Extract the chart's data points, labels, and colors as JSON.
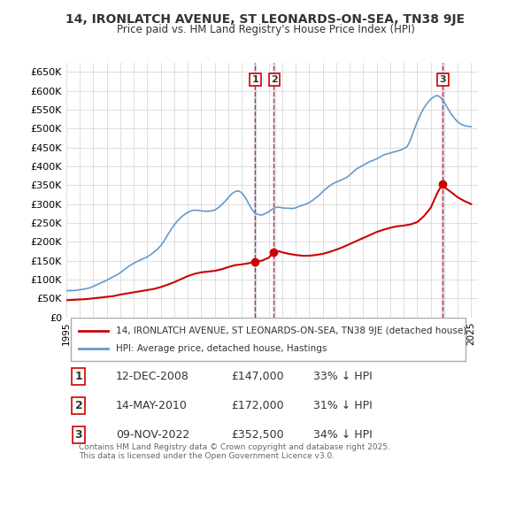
{
  "title": "14, IRONLATCH AVENUE, ST LEONARDS-ON-SEA, TN38 9JE",
  "subtitle": "Price paid vs. HM Land Registry's House Price Index (HPI)",
  "ylabel": "",
  "xlabel": "",
  "background_color": "#ffffff",
  "plot_bg_color": "#ffffff",
  "grid_color": "#dddddd",
  "hpi_color": "#6699cc",
  "price_color": "#cc0000",
  "ylim": [
    0,
    675000
  ],
  "yticks": [
    0,
    50000,
    100000,
    150000,
    200000,
    250000,
    300000,
    350000,
    400000,
    450000,
    500000,
    550000,
    600000,
    650000
  ],
  "ytick_labels": [
    "£0",
    "£50K",
    "£100K",
    "£150K",
    "£200K",
    "£250K",
    "£300K",
    "£350K",
    "£400K",
    "£450K",
    "£500K",
    "£550K",
    "£600K",
    "£650K"
  ],
  "xlim_start": 1995.0,
  "xlim_end": 2025.5,
  "xtick_years": [
    1995,
    1996,
    1997,
    1998,
    1999,
    2000,
    2001,
    2002,
    2003,
    2004,
    2005,
    2006,
    2007,
    2008,
    2009,
    2010,
    2011,
    2012,
    2013,
    2014,
    2015,
    2016,
    2017,
    2018,
    2019,
    2020,
    2021,
    2022,
    2023,
    2024,
    2025
  ],
  "transactions": [
    {
      "num": 1,
      "date": "12-DEC-2008",
      "price": 147000,
      "pct": "33%",
      "dir": "↓",
      "x": 2008.95
    },
    {
      "num": 2,
      "date": "14-MAY-2010",
      "price": 172000,
      "pct": "31%",
      "dir": "↓",
      "x": 2010.37
    },
    {
      "num": 3,
      "date": "09-NOV-2022",
      "price": 352500,
      "pct": "34%",
      "dir": "↓",
      "x": 2022.86
    }
  ],
  "legend_line1": "14, IRONLATCH AVENUE, ST LEONARDS-ON-SEA, TN38 9JE (detached house)",
  "legend_line2": "HPI: Average price, detached house, Hastings",
  "footnote": "Contains HM Land Registry data © Crown copyright and database right 2025.\nThis data is licensed under the Open Government Licence v3.0.",
  "hpi_data_x": [
    1995.0,
    1995.25,
    1995.5,
    1995.75,
    1996.0,
    1996.25,
    1996.5,
    1996.75,
    1997.0,
    1997.25,
    1997.5,
    1997.75,
    1998.0,
    1998.25,
    1998.5,
    1998.75,
    1999.0,
    1999.25,
    1999.5,
    1999.75,
    2000.0,
    2000.25,
    2000.5,
    2000.75,
    2001.0,
    2001.25,
    2001.5,
    2001.75,
    2002.0,
    2002.25,
    2002.5,
    2002.75,
    2003.0,
    2003.25,
    2003.5,
    2003.75,
    2004.0,
    2004.25,
    2004.5,
    2004.75,
    2005.0,
    2005.25,
    2005.5,
    2005.75,
    2006.0,
    2006.25,
    2006.5,
    2006.75,
    2007.0,
    2007.25,
    2007.5,
    2007.75,
    2008.0,
    2008.25,
    2008.5,
    2008.75,
    2009.0,
    2009.25,
    2009.5,
    2009.75,
    2010.0,
    2010.25,
    2010.5,
    2010.75,
    2011.0,
    2011.25,
    2011.5,
    2011.75,
    2012.0,
    2012.25,
    2012.5,
    2012.75,
    2013.0,
    2013.25,
    2013.5,
    2013.75,
    2014.0,
    2014.25,
    2014.5,
    2014.75,
    2015.0,
    2015.25,
    2015.5,
    2015.75,
    2016.0,
    2016.25,
    2016.5,
    2016.75,
    2017.0,
    2017.25,
    2017.5,
    2017.75,
    2018.0,
    2018.25,
    2018.5,
    2018.75,
    2019.0,
    2019.25,
    2019.5,
    2019.75,
    2020.0,
    2020.25,
    2020.5,
    2020.75,
    2021.0,
    2021.25,
    2021.5,
    2021.75,
    2022.0,
    2022.25,
    2022.5,
    2022.75,
    2023.0,
    2023.25,
    2023.5,
    2023.75,
    2024.0,
    2024.25,
    2024.5,
    2024.75,
    2025.0
  ],
  "hpi_data_y": [
    70000,
    71000,
    70500,
    71500,
    73000,
    74000,
    76000,
    78000,
    82000,
    86000,
    90000,
    94000,
    98000,
    103000,
    108000,
    112000,
    118000,
    125000,
    132000,
    138000,
    143000,
    148000,
    152000,
    156000,
    160000,
    166000,
    173000,
    180000,
    190000,
    203000,
    218000,
    232000,
    245000,
    256000,
    265000,
    272000,
    278000,
    282000,
    284000,
    283000,
    282000,
    281000,
    281000,
    282000,
    284000,
    290000,
    298000,
    307000,
    317000,
    327000,
    333000,
    335000,
    330000,
    318000,
    302000,
    286000,
    275000,
    272000,
    271000,
    275000,
    280000,
    286000,
    291000,
    292000,
    290000,
    289000,
    289000,
    288000,
    290000,
    294000,
    297000,
    300000,
    304000,
    310000,
    317000,
    324000,
    333000,
    341000,
    348000,
    354000,
    358000,
    362000,
    366000,
    370000,
    377000,
    385000,
    393000,
    398000,
    403000,
    408000,
    413000,
    416000,
    420000,
    425000,
    430000,
    433000,
    435000,
    438000,
    440000,
    443000,
    447000,
    452000,
    470000,
    495000,
    518000,
    538000,
    555000,
    568000,
    578000,
    585000,
    588000,
    582000,
    570000,
    555000,
    540000,
    528000,
    518000,
    512000,
    508000,
    506000,
    505000
  ],
  "price_data_x": [
    1995.0,
    1995.5,
    1996.0,
    1996.5,
    1997.0,
    1997.5,
    1998.0,
    1998.5,
    1999.0,
    1999.5,
    2000.0,
    2000.5,
    2001.0,
    2001.5,
    2002.0,
    2002.5,
    2003.0,
    2003.5,
    2004.0,
    2004.5,
    2005.0,
    2005.5,
    2006.0,
    2006.5,
    2007.0,
    2007.5,
    2008.0,
    2008.5,
    2008.95,
    2009.5,
    2010.0,
    2010.37,
    2010.75,
    2011.0,
    2011.5,
    2012.0,
    2012.5,
    2013.0,
    2013.5,
    2014.0,
    2014.5,
    2015.0,
    2015.5,
    2016.0,
    2016.5,
    2017.0,
    2017.5,
    2018.0,
    2018.5,
    2019.0,
    2019.5,
    2020.0,
    2020.5,
    2021.0,
    2021.5,
    2022.0,
    2022.5,
    2022.86,
    2023.0,
    2023.5,
    2024.0,
    2024.5,
    2025.0
  ],
  "price_data_y": [
    45000,
    46000,
    47000,
    48000,
    50000,
    52000,
    54000,
    56000,
    60000,
    63000,
    66000,
    69000,
    72000,
    75000,
    80000,
    86000,
    93000,
    101000,
    109000,
    115000,
    119000,
    121000,
    123000,
    127000,
    133000,
    138000,
    140000,
    143000,
    147000,
    150000,
    158000,
    172000,
    175000,
    172000,
    168000,
    165000,
    163000,
    163000,
    165000,
    168000,
    173000,
    179000,
    186000,
    194000,
    202000,
    210000,
    218000,
    226000,
    232000,
    237000,
    241000,
    243000,
    246000,
    252000,
    268000,
    290000,
    330000,
    352500,
    345000,
    332000,
    318000,
    308000,
    300000
  ]
}
